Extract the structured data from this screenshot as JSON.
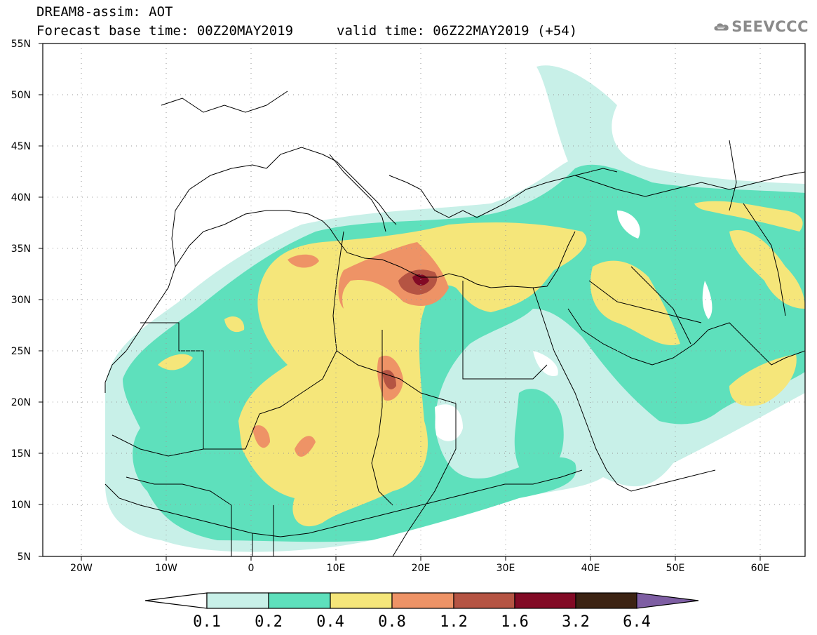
{
  "header": {
    "title_line1": "DREAM8-assim: AOT",
    "title_line2": "Forecast base time: 00Z20MAY2019",
    "valid_time": "valid time: 06Z22MAY2019 (+54)"
  },
  "logo": {
    "text": "SEEVCCC",
    "icon": "cloud-icon"
  },
  "map": {
    "lon_range": [
      -25,
      65
    ],
    "lat_range": [
      5,
      55
    ],
    "lat_ticks": [
      "55N",
      "50N",
      "45N",
      "40N",
      "35N",
      "30N",
      "25N",
      "20N",
      "15N",
      "10N",
      "5N"
    ],
    "lon_ticks": [
      "20W",
      "10W",
      "0",
      "10E",
      "20E",
      "30E",
      "40E",
      "50E",
      "60E"
    ],
    "grid": "dotted"
  },
  "colorbar": {
    "labels": [
      "0.1",
      "0.2",
      "0.4",
      "0.8",
      "1.2",
      "1.6",
      "3.2",
      "6.4"
    ],
    "colors": [
      "#ffffff",
      "#c8f0e8",
      "#5ee0bc",
      "#f5e67a",
      "#ee9366",
      "#b55443",
      "#820a25",
      "#3c2313",
      "#7e5ea3"
    ]
  }
}
